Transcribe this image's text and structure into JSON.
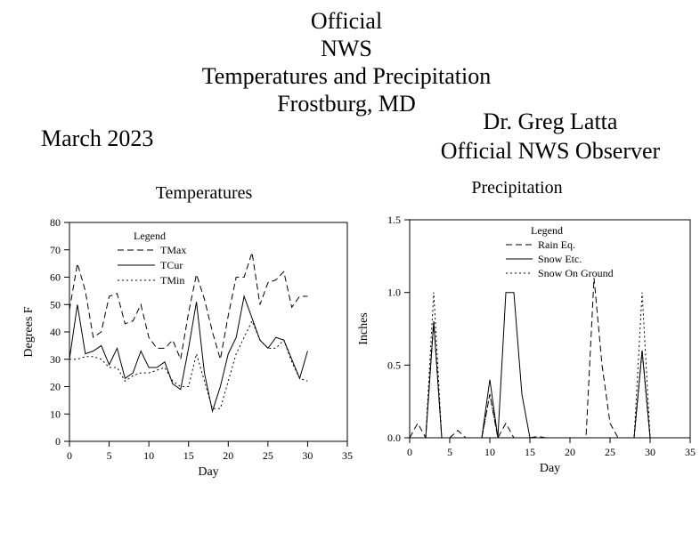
{
  "header": {
    "title_lines": [
      "Official",
      "NWS",
      "Temperatures and Precipitation",
      "Frostburg, MD"
    ],
    "month": "March 2023",
    "observer_name": "Dr. Greg Latta",
    "observer_title": "Official NWS Observer"
  },
  "chart_data": [
    {
      "type": "line",
      "title": "Temperatures",
      "xlabel": "Day",
      "ylabel": "Degrees F",
      "xlim": [
        0,
        35
      ],
      "ylim": [
        0,
        80
      ],
      "x_ticks": [
        "0",
        "5",
        "10",
        "15",
        "20",
        "25",
        "30",
        "35"
      ],
      "y_ticks": [
        "0",
        "10",
        "20",
        "30",
        "40",
        "50",
        "60",
        "70",
        "80"
      ],
      "legend_title": "Legend",
      "legend_position": "top-left",
      "series": [
        {
          "name": "TMax",
          "style": "dashed",
          "x": [
            0,
            1,
            2,
            3,
            4,
            5,
            6,
            7,
            8,
            9,
            10,
            11,
            12,
            13,
            14,
            15,
            16,
            17,
            18,
            19,
            20,
            21,
            22,
            23,
            24,
            25,
            26,
            27,
            28,
            29,
            30
          ],
          "y": [
            48,
            65,
            55,
            38,
            40,
            53,
            54,
            43,
            44,
            50,
            38,
            34,
            34,
            37,
            30,
            47,
            61,
            52,
            40,
            30,
            46,
            60,
            60,
            69,
            50,
            58,
            59,
            62,
            49,
            53,
            53
          ]
        },
        {
          "name": "TCur",
          "style": "solid",
          "x": [
            0,
            1,
            2,
            3,
            4,
            5,
            6,
            7,
            8,
            9,
            10,
            11,
            12,
            13,
            14,
            15,
            16,
            17,
            18,
            19,
            20,
            21,
            22,
            23,
            24,
            25,
            26,
            27,
            28,
            29,
            30
          ],
          "y": [
            30,
            50,
            32,
            33,
            35,
            28,
            34,
            23,
            25,
            33,
            27,
            27,
            29,
            21,
            19,
            34,
            51,
            25,
            11,
            20,
            32,
            38,
            53,
            45,
            37,
            34,
            38,
            37,
            30,
            23,
            33
          ]
        },
        {
          "name": "TMin",
          "style": "dotted",
          "x": [
            0,
            1,
            2,
            3,
            4,
            5,
            6,
            7,
            8,
            9,
            10,
            11,
            12,
            13,
            14,
            15,
            16,
            17,
            18,
            19,
            20,
            21,
            22,
            23,
            24,
            25,
            26,
            27,
            28,
            29,
            30
          ],
          "y": [
            30,
            30,
            31,
            31,
            30,
            27,
            27,
            22,
            24,
            25,
            25,
            26,
            27,
            22,
            20,
            20,
            32,
            22,
            12,
            12,
            22,
            32,
            38,
            44,
            37,
            34,
            34,
            37,
            29,
            23,
            22
          ]
        }
      ]
    },
    {
      "type": "line",
      "title": "Precipitation",
      "xlabel": "Day",
      "ylabel": "Inches",
      "xlim": [
        0,
        35
      ],
      "ylim": [
        0,
        1.5
      ],
      "x_ticks": [
        "0",
        "5",
        "10",
        "15",
        "20",
        "25",
        "30",
        "35"
      ],
      "y_ticks": [
        "0.0",
        "0.5",
        "1.0",
        "1.5"
      ],
      "legend_title": "Legend",
      "legend_position": "top-left",
      "series": [
        {
          "name": "Rain Eq.",
          "style": "dashed",
          "x": [
            0,
            1,
            2,
            3,
            4,
            5,
            6,
            7,
            8,
            9,
            10,
            11,
            12,
            13,
            14,
            15,
            16,
            17,
            18,
            19,
            20,
            21,
            22,
            23,
            24,
            25,
            26,
            27,
            28,
            29,
            30
          ],
          "y": [
            0,
            0.1,
            0,
            0.8,
            0,
            0,
            0.05,
            0,
            0,
            0,
            0.3,
            0,
            0.1,
            0,
            0,
            0,
            0.01,
            0,
            0,
            0,
            0,
            0,
            0,
            1.1,
            0.5,
            0.1,
            0,
            0,
            0,
            0.6,
            0
          ]
        },
        {
          "name": "Snow Etc.",
          "style": "solid",
          "x": [
            0,
            1,
            2,
            3,
            4,
            5,
            6,
            7,
            8,
            9,
            10,
            11,
            12,
            13,
            14,
            15,
            16,
            17,
            18,
            19,
            20,
            21,
            22,
            23,
            24,
            25,
            26,
            27,
            28,
            29,
            30
          ],
          "y": [
            0,
            0,
            0,
            0.8,
            0,
            0,
            0,
            0,
            0,
            0,
            0.4,
            0,
            1.0,
            1.0,
            0.3,
            0,
            0,
            0,
            0,
            0,
            0,
            0,
            0,
            0,
            0,
            0,
            0,
            0,
            0,
            0.6,
            0
          ]
        },
        {
          "name": "Snow On Ground",
          "style": "dotted",
          "x": [
            0,
            1,
            2,
            3,
            4,
            5,
            6,
            7,
            8,
            9,
            10,
            11,
            12,
            13,
            14,
            15,
            16,
            17,
            18,
            19,
            20,
            21,
            22,
            23,
            24,
            25,
            26,
            27,
            28,
            29,
            30
          ],
          "y": [
            0,
            0,
            0,
            1.0,
            0,
            0,
            0,
            0,
            0,
            0,
            0.3,
            0,
            0,
            0,
            0,
            0,
            0,
            0,
            0,
            0,
            0,
            0,
            0,
            0,
            0,
            0,
            0,
            0,
            0,
            1.0,
            0
          ]
        }
      ]
    }
  ]
}
